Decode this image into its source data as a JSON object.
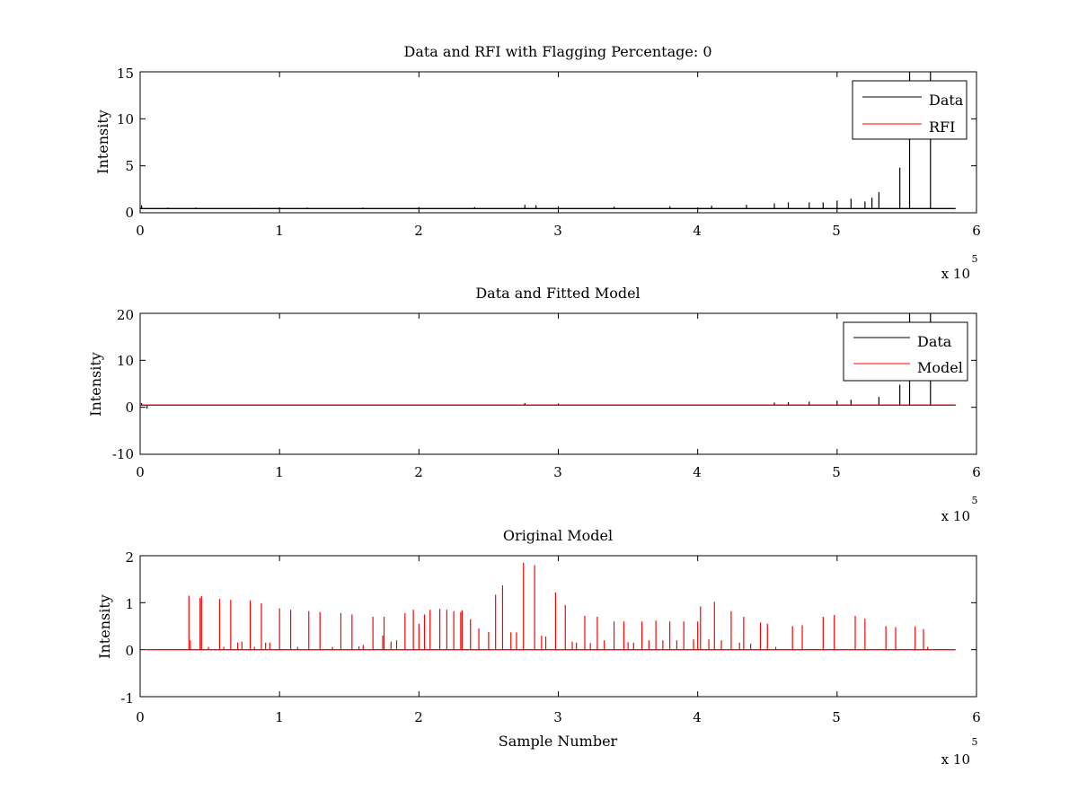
{
  "figure": {
    "background": "#ffffff",
    "axes_color": "#000000"
  },
  "chart_data": [
    {
      "type": "line",
      "title": "Data and RFI with Flagging Percentage: 0",
      "xlabel": "",
      "ylabel": "Intensity",
      "xlim": [
        0,
        6
      ],
      "ylim": [
        0,
        15
      ],
      "x_multiplier": "x 10",
      "x_multiplier_exponent": "5",
      "xticks": [
        "0",
        "1",
        "2",
        "3",
        "4",
        "5",
        "6"
      ],
      "yticks": [
        "0",
        "5",
        "10",
        "15"
      ],
      "grid": false,
      "legend": {
        "placement": "top-right",
        "entries": [
          {
            "name": "Data",
            "color": "#000000"
          },
          {
            "name": "RFI",
            "color": "#ff0000"
          }
        ]
      },
      "series": [
        {
          "name": "Data",
          "color": "#000000",
          "baseline": 0.45,
          "spikes": [
            [
              0.01,
              0.8
            ],
            [
              0.2,
              0.55
            ],
            [
              0.4,
              0.55
            ],
            [
              0.8,
              0.5
            ],
            [
              1.2,
              0.55
            ],
            [
              1.6,
              0.55
            ],
            [
              2.0,
              0.6
            ],
            [
              2.4,
              0.6
            ],
            [
              2.76,
              0.85
            ],
            [
              2.84,
              0.8
            ],
            [
              3.0,
              0.7
            ],
            [
              3.4,
              0.65
            ],
            [
              3.8,
              0.7
            ],
            [
              4.1,
              0.75
            ],
            [
              4.35,
              0.85
            ],
            [
              4.55,
              1.0
            ],
            [
              4.65,
              1.1
            ],
            [
              4.8,
              1.1
            ],
            [
              4.9,
              1.1
            ],
            [
              5.0,
              1.3
            ],
            [
              5.1,
              1.5
            ],
            [
              5.2,
              1.2
            ],
            [
              5.25,
              1.6
            ],
            [
              5.3,
              2.2
            ],
            [
              5.45,
              4.8
            ],
            [
              5.52,
              15
            ],
            [
              5.67,
              15
            ]
          ]
        },
        {
          "name": "RFI",
          "color": "#ff0000",
          "values": []
        }
      ]
    },
    {
      "type": "line",
      "title": "Data and Fitted Model",
      "xlabel": "",
      "ylabel": "Intensity",
      "xlim": [
        0,
        6
      ],
      "ylim": [
        -10,
        20
      ],
      "x_multiplier": "x 10",
      "x_multiplier_exponent": "5",
      "xticks": [
        "0",
        "1",
        "2",
        "3",
        "4",
        "5",
        "6"
      ],
      "yticks": [
        "-10",
        "0",
        "10",
        "20"
      ],
      "grid": false,
      "legend": {
        "placement": "top-right",
        "entries": [
          {
            "name": "Data",
            "color": "#000000"
          },
          {
            "name": "Model",
            "color": "#ff0000"
          }
        ]
      },
      "series": [
        {
          "name": "Data",
          "color": "#000000",
          "baseline": 0.45,
          "spikes": [
            [
              0.01,
              0.9
            ],
            [
              0.05,
              -0.3
            ],
            [
              0.2,
              0.6
            ],
            [
              1.6,
              0.6
            ],
            [
              2.76,
              0.9
            ],
            [
              3.0,
              0.8
            ],
            [
              4.55,
              1.0
            ],
            [
              4.65,
              1.1
            ],
            [
              4.8,
              1.2
            ],
            [
              5.0,
              1.4
            ],
            [
              5.1,
              1.6
            ],
            [
              5.3,
              2.2
            ],
            [
              5.45,
              4.8
            ],
            [
              5.52,
              20
            ],
            [
              5.67,
              20
            ]
          ]
        },
        {
          "name": "Model",
          "color": "#ff0000",
          "baseline": 0.45,
          "x_range": [
            0,
            5.85
          ]
        }
      ]
    },
    {
      "type": "line",
      "title": "Original Model",
      "xlabel": "Sample Number",
      "ylabel": "Intensity",
      "xlim": [
        0,
        6
      ],
      "ylim": [
        -1,
        2
      ],
      "x_multiplier": "x 10",
      "x_multiplier_exponent": "5",
      "xticks": [
        "0",
        "1",
        "2",
        "3",
        "4",
        "5",
        "6"
      ],
      "yticks": [
        "-1",
        "0",
        "1",
        "2"
      ],
      "grid": false,
      "series": [
        {
          "name": "",
          "color": "#ff0000",
          "baseline": 0,
          "x_range": [
            0.04,
            5.85
          ],
          "spikes": [
            [
              0.35,
              1.15
            ],
            [
              0.36,
              0.2
            ],
            [
              0.43,
              1.1
            ],
            [
              0.44,
              1.14
            ],
            [
              0.49,
              0.06
            ],
            [
              0.57,
              1.08
            ],
            [
              0.6,
              0.06
            ],
            [
              0.65,
              1.06
            ],
            [
              0.7,
              0.15
            ],
            [
              0.73,
              0.17
            ],
            [
              0.79,
              1.05
            ],
            [
              0.82,
              0.06
            ],
            [
              0.87,
              0.99
            ],
            [
              0.9,
              0.15
            ],
            [
              0.93,
              0.15
            ],
            [
              1.0,
              0.88
            ],
            [
              1.08,
              0.85
            ],
            [
              1.13,
              0.06
            ],
            [
              1.21,
              0.82
            ],
            [
              1.29,
              0.8
            ],
            [
              1.38,
              0.06
            ],
            [
              1.44,
              0.78
            ],
            [
              1.52,
              0.75
            ],
            [
              1.57,
              0.07
            ],
            [
              1.6,
              0.1
            ],
            [
              1.67,
              0.7
            ],
            [
              1.74,
              0.3
            ],
            [
              1.75,
              0.7
            ],
            [
              1.8,
              0.17
            ],
            [
              1.84,
              0.2
            ],
            [
              1.9,
              0.78
            ],
            [
              1.96,
              0.85
            ],
            [
              2.0,
              0.55
            ],
            [
              2.04,
              0.75
            ],
            [
              2.08,
              0.85
            ],
            [
              2.15,
              0.87
            ],
            [
              2.2,
              0.85
            ],
            [
              2.25,
              0.82
            ],
            [
              2.3,
              0.8
            ],
            [
              2.31,
              0.84
            ],
            [
              2.37,
              0.65
            ],
            [
              2.43,
              0.45
            ],
            [
              2.5,
              0.38
            ],
            [
              2.55,
              1.17
            ],
            [
              2.6,
              1.37
            ],
            [
              2.66,
              0.37
            ],
            [
              2.7,
              0.37
            ],
            [
              2.75,
              1.85
            ],
            [
              2.83,
              1.8
            ],
            [
              2.88,
              0.3
            ],
            [
              2.91,
              0.28
            ],
            [
              2.98,
              1.22
            ],
            [
              3.05,
              0.95
            ],
            [
              3.1,
              0.17
            ],
            [
              3.13,
              0.15
            ],
            [
              3.19,
              0.72
            ],
            [
              3.23,
              0.14
            ],
            [
              3.28,
              0.7
            ],
            [
              3.33,
              0.2
            ],
            [
              3.4,
              0.6
            ],
            [
              3.47,
              0.6
            ],
            [
              3.5,
              0.16
            ],
            [
              3.54,
              0.15
            ],
            [
              3.6,
              0.6
            ],
            [
              3.65,
              0.2
            ],
            [
              3.7,
              0.62
            ],
            [
              3.75,
              0.2
            ],
            [
              3.8,
              0.6
            ],
            [
              3.85,
              0.2
            ],
            [
              3.9,
              0.6
            ],
            [
              3.97,
              0.22
            ],
            [
              4.0,
              0.6
            ],
            [
              4.02,
              0.92
            ],
            [
              4.08,
              0.22
            ],
            [
              4.12,
              1.02
            ],
            [
              4.17,
              0.2
            ],
            [
              4.24,
              0.82
            ],
            [
              4.3,
              0.15
            ],
            [
              4.33,
              0.7
            ],
            [
              4.38,
              0.13
            ],
            [
              4.45,
              0.58
            ],
            [
              4.5,
              0.55
            ],
            [
              4.56,
              0.06
            ],
            [
              4.68,
              0.5
            ],
            [
              4.75,
              0.52
            ],
            [
              4.9,
              0.7
            ],
            [
              4.98,
              0.74
            ],
            [
              5.13,
              0.72
            ],
            [
              5.2,
              0.66
            ],
            [
              5.35,
              0.5
            ],
            [
              5.42,
              0.48
            ],
            [
              5.56,
              0.5
            ],
            [
              5.62,
              0.44
            ],
            [
              5.65,
              0.06
            ]
          ]
        }
      ]
    }
  ]
}
